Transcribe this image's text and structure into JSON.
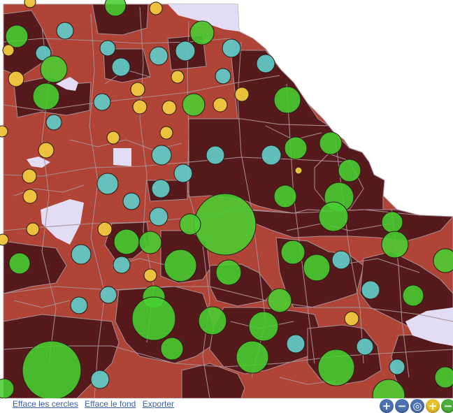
{
  "map": {
    "colors": {
      "background": "#ffffff",
      "water_or_other": "#e2dcf4",
      "district_light": "#b04436",
      "district_dark": "#561a1c",
      "boundary": "#a98f95",
      "circle_green": "#48cf31",
      "circle_cyan": "#62c6c3",
      "circle_yellow": "#ecc43e"
    },
    "circle_types": [
      "green",
      "cyan",
      "yellow"
    ]
  },
  "footer": {
    "links": [
      {
        "label": "Efface les cercles"
      },
      {
        "label": "Efface le fond"
      },
      {
        "label": "Exporter"
      }
    ],
    "controls": [
      {
        "icon": "plus-icon",
        "glyph": "+",
        "color": "#4a73b0"
      },
      {
        "icon": "minus-icon",
        "glyph": "−",
        "color": "#4a73b0"
      },
      {
        "icon": "target-icon",
        "glyph": "◎",
        "color": "#4a73b0"
      },
      {
        "icon": "zoom-in-icon",
        "glyph": "+",
        "color": "#e5c22b"
      },
      {
        "icon": "zoom-out-icon",
        "glyph": "−",
        "color": "#4caf38"
      }
    ]
  }
}
